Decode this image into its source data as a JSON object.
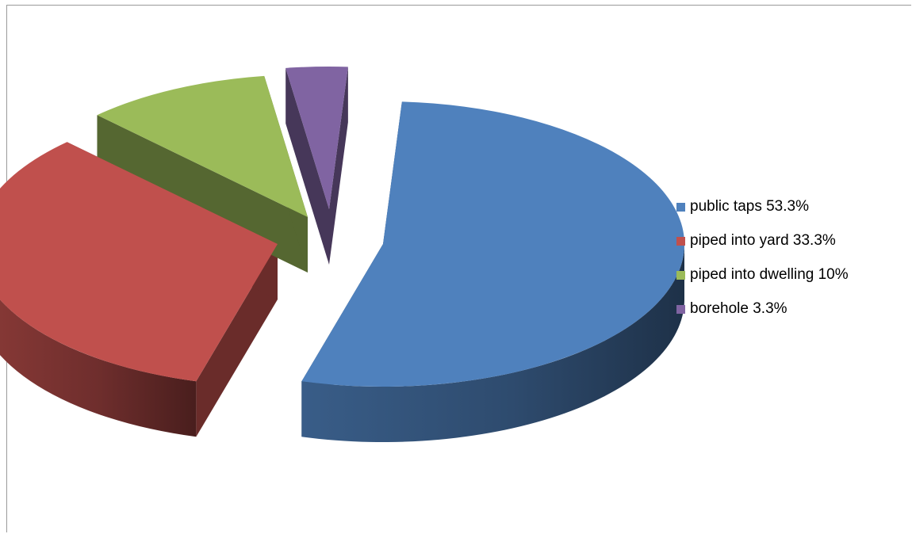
{
  "chart_data": {
    "type": "pie",
    "style": "3d-exploded",
    "title": "",
    "legend_position": "right",
    "slices": [
      {
        "label": "public taps 53.3%",
        "value": 53.3,
        "color": "#4f81bd"
      },
      {
        "label": "piped into yard 33.3%",
        "value": 33.3,
        "color": "#c0504d"
      },
      {
        "label": "piped into dwelling 10%",
        "value": 10,
        "color": "#9bbb59"
      },
      {
        "label": "borehole 3.3%",
        "value": 3.3,
        "color": "#8064a2"
      }
    ]
  },
  "legend": {
    "items": [
      {
        "label": "public taps 53.3%",
        "color": "#4f81bd"
      },
      {
        "label": "piped into yard 33.3%",
        "color": "#c0504d"
      },
      {
        "label": "piped into dwelling 10%",
        "color": "#9bbb59"
      },
      {
        "label": "borehole 3.3%",
        "color": "#8064a2"
      }
    ]
  }
}
